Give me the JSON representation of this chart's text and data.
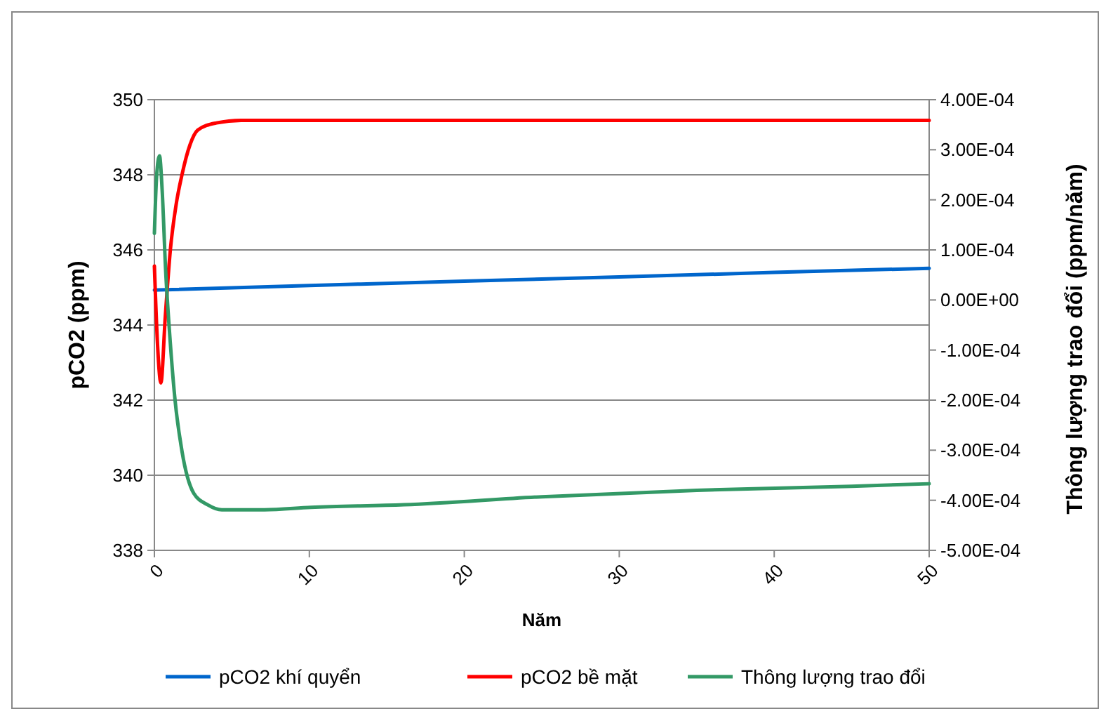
{
  "chart_data": {
    "type": "line",
    "xlabel": "Năm",
    "ylabel": "pCO2 (ppm)",
    "y2label": "Thông lượng trao đổi (ppm/năm)",
    "xlim": [
      0,
      50
    ],
    "xticks": [
      0,
      10,
      20,
      30,
      40,
      50
    ],
    "ylim": [
      338,
      350
    ],
    "yticks": [
      338,
      340,
      342,
      344,
      346,
      348,
      350
    ],
    "y2lim": [
      -0.0005,
      0.0004
    ],
    "y2ticks": [
      {
        "value": -0.0005,
        "label": "-5.00E-04"
      },
      {
        "value": -0.0004,
        "label": "-4.00E-04"
      },
      {
        "value": -0.0003,
        "label": "-3.00E-04"
      },
      {
        "value": -0.0002,
        "label": "-2.00E-04"
      },
      {
        "value": -0.0001,
        "label": "-1.00E-04"
      },
      {
        "value": 0,
        "label": "0.00E+00"
      },
      {
        "value": 0.0001,
        "label": "1.00E-04"
      },
      {
        "value": 0.0002,
        "label": "2.00E-04"
      },
      {
        "value": 0.0003,
        "label": "3.00E-04"
      },
      {
        "value": 0.0004,
        "label": "4.00E-04"
      }
    ],
    "grid": "y",
    "legend": "bottom",
    "marker": "none",
    "line_style": "solid",
    "series": [
      {
        "name": "pCO2 khí quyển",
        "color": "#0066cc",
        "x": [
          0,
          10,
          20,
          30,
          40,
          50
        ],
        "values": [
          344.93,
          345.05,
          345.17,
          345.28,
          345.4,
          345.51
        ]
      },
      {
        "name": "pCO2 bề mặt",
        "color": "#ff0000",
        "x": [
          0,
          0.2,
          0.42,
          0.7,
          1.03,
          1.4,
          1.78,
          2.3,
          2.8,
          4.0,
          5.6,
          10,
          20,
          30,
          40,
          50
        ],
        "values": [
          345.57,
          343.5,
          342.46,
          344.2,
          346.0,
          347.2,
          348.0,
          348.8,
          349.19,
          349.38,
          349.45,
          349.45,
          349.45,
          349.45,
          349.45,
          349.45
        ]
      },
      {
        "name": "Thông lượng trao đổi",
        "color": "#339966",
        "axis": "y2",
        "x": [
          0,
          0.15,
          0.33,
          0.5,
          0.72,
          1.03,
          1.33,
          1.78,
          2.54,
          3.44,
          4.35,
          7.1,
          10.1,
          16.1,
          25,
          35,
          45,
          50
        ],
        "values": [
          0.000133,
          0.00025,
          0.000288,
          0.00022,
          6.3e-05,
          -8.7e-05,
          -0.000199,
          -0.000302,
          -0.000386,
          -0.000409,
          -0.000419,
          -0.000419,
          -0.000414,
          -0.000409,
          -0.000393,
          -0.00038,
          -0.000372,
          -0.000367
        ]
      }
    ]
  }
}
